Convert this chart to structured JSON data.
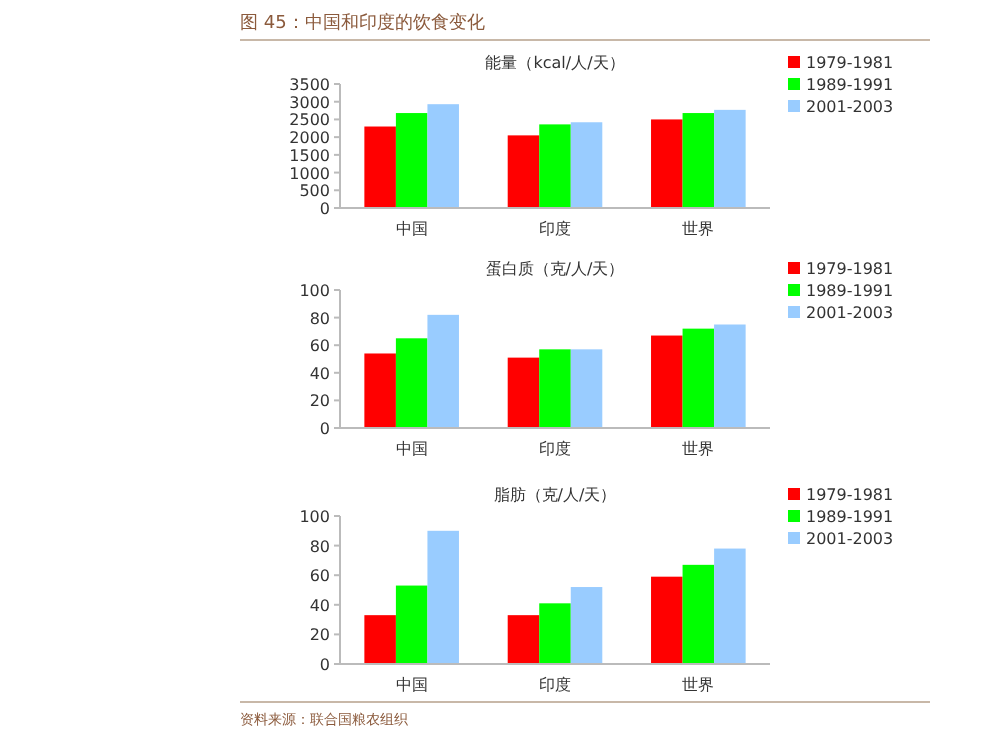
{
  "chart_data": [
    {
      "type": "bar",
      "title": "能量（kcal/人/天）",
      "annotations": [
        "图 45：中国和印度的饮食变化"
      ],
      "categories": [
        "中国",
        "印度",
        "世界"
      ],
      "series": [
        {
          "name": "1979-1981",
          "color": "#ff0000",
          "values": [
            2300,
            2050,
            2500
          ]
        },
        {
          "name": "1989-1991",
          "color": "#00ff00",
          "values": [
            2680,
            2360,
            2680
          ]
        },
        {
          "name": "2001-2003",
          "color": "#99ccff",
          "values": [
            2930,
            2420,
            2770
          ]
        }
      ],
      "ylim": [
        0,
        3500
      ],
      "yticks": [
        0,
        500,
        1000,
        1500,
        2000,
        2500,
        3000,
        3500
      ],
      "legend": "right",
      "grid": false
    },
    {
      "type": "bar",
      "title": "蛋白质（克/人/天）",
      "categories": [
        "中国",
        "印度",
        "世界"
      ],
      "series": [
        {
          "name": "1979-1981",
          "color": "#ff0000",
          "values": [
            54,
            51,
            67
          ]
        },
        {
          "name": "1989-1991",
          "color": "#00ff00",
          "values": [
            65,
            57,
            72
          ]
        },
        {
          "name": "2001-2003",
          "color": "#99ccff",
          "values": [
            82,
            57,
            75
          ]
        }
      ],
      "ylim": [
        0,
        100
      ],
      "yticks": [
        0,
        20,
        40,
        60,
        80,
        100
      ],
      "legend": "right",
      "grid": false
    },
    {
      "type": "bar",
      "title": "脂肪（克/人/天）",
      "annotations": [
        "资料来源：联合国粮农组织"
      ],
      "categories": [
        "中国",
        "印度",
        "世界"
      ],
      "series": [
        {
          "name": "1979-1981",
          "color": "#ff0000",
          "values": [
            33,
            33,
            59
          ]
        },
        {
          "name": "1989-1991",
          "color": "#00ff00",
          "values": [
            53,
            41,
            67
          ]
        },
        {
          "name": "2001-2003",
          "color": "#99ccff",
          "values": [
            90,
            52,
            78
          ]
        }
      ],
      "ylim": [
        0,
        100
      ],
      "yticks": [
        0,
        20,
        40,
        60,
        80,
        100
      ],
      "legend": "right",
      "grid": false
    }
  ]
}
